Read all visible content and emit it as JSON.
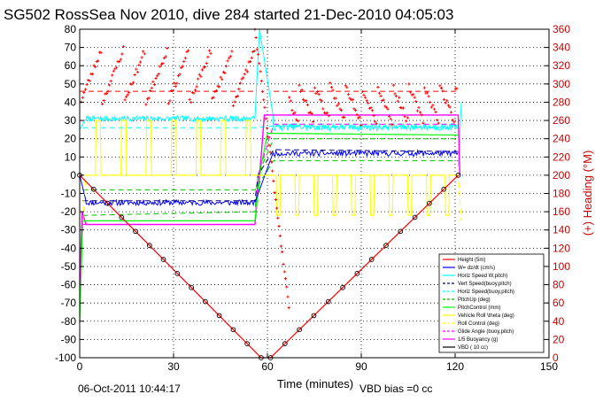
{
  "chart_data": {
    "type": "line",
    "title": "SG502 RossSea Nov 2010, dive 284 started 21-Dec-2010 04:05:03",
    "xlabel": "Time (minutes)",
    "ylabel_right": "(+) Heading (°M)",
    "xlim": [
      0,
      150
    ],
    "ylim": [
      -100,
      80
    ],
    "ylim_right": [
      0,
      360
    ],
    "x_ticks": [
      0,
      30,
      60,
      90,
      120,
      150
    ],
    "y_ticks": [
      -100,
      -90,
      -80,
      -70,
      -60,
      -50,
      -40,
      -30,
      -20,
      -10,
      0,
      10,
      20,
      30,
      40,
      50,
      60,
      70,
      80
    ],
    "y_ticks_right": [
      0,
      20,
      40,
      60,
      80,
      100,
      120,
      140,
      160,
      180,
      200,
      220,
      240,
      260,
      280,
      300,
      320,
      340,
      360
    ],
    "grid": true,
    "legend_position": "bottom-right",
    "series": [
      {
        "name": "Height (5m)",
        "color": "#ff0000",
        "x": [
          0,
          58,
          61,
          121
        ],
        "values": [
          0,
          -100,
          -100,
          0
        ]
      },
      {
        "name": "W= dz/dt (cm/s)",
        "color": "#0000ff",
        "x": [
          0,
          2,
          10,
          55,
          56,
          57,
          62,
          63,
          90,
          121
        ],
        "values": [
          0,
          -14,
          -16,
          -15,
          -15,
          0,
          12,
          13,
          12,
          11
        ]
      },
      {
        "name": "Horiz Speed W,pitch)",
        "color": "#00ffff",
        "x": [
          0,
          2,
          56,
          57,
          62,
          121
        ],
        "values": [
          25,
          32,
          31,
          80,
          29,
          26
        ]
      },
      {
        "name": "Vert Speed(buoy,pitch)",
        "color": "#000080",
        "x": [
          0,
          2,
          56,
          57,
          62,
          121
        ],
        "values": [
          0,
          -14,
          -14,
          0,
          14,
          13
        ]
      },
      {
        "name": "Horiz Speed(buoy,pitch)",
        "color": "#00ffff",
        "x": [
          0,
          2,
          56,
          62,
          121
        ],
        "values": [
          25,
          26,
          26,
          27,
          26
        ]
      },
      {
        "name": "PitchUp (deg)",
        "color": "#00c000",
        "x": [
          0,
          2,
          56,
          57,
          62,
          121
        ],
        "values": [
          0,
          -22,
          -20,
          0,
          20,
          20
        ]
      },
      {
        "name": "PitchControl (mm)",
        "color": "#00ff00",
        "x": [
          0,
          2,
          56,
          57,
          62,
          121
        ],
        "values": [
          -80,
          -25,
          -25,
          0,
          23,
          22
        ]
      },
      {
        "name": "Vehicle Roll \\theta (deg)",
        "color": "#ffff00",
        "x": [
          0,
          2,
          56,
          57,
          62,
          121
        ],
        "values": [
          0,
          0,
          0,
          0,
          0,
          0
        ]
      },
      {
        "name": "Roll Control (deg)",
        "color": "#ffff00",
        "x": [
          0,
          2,
          56,
          57,
          62,
          121
        ],
        "values": [
          0,
          0,
          0,
          0,
          0,
          0
        ]
      },
      {
        "name": "Glide Angle (buoy,pitch)",
        "color": "#ff00ff",
        "x": [
          0,
          2,
          56,
          62,
          121
        ],
        "values": [
          0,
          -28,
          -27,
          28,
          27
        ]
      },
      {
        "name": "1/5 Buoyancy (g)",
        "color": "#ff00ff",
        "x": [
          0,
          2,
          56,
          57,
          62,
          121
        ],
        "values": [
          -60,
          -27,
          -27,
          0,
          33,
          32
        ]
      },
      {
        "name": "VBD ( 10 cc)",
        "color": "#000000",
        "x": [
          0,
          58,
          61,
          121
        ],
        "values": [
          0,
          -100,
          -100,
          0
        ]
      }
    ],
    "heading_series": {
      "name": "(+) Heading (°M)",
      "color": "#ff0000"
    },
    "annotations": [
      "06-Oct-2011 10:44:17",
      "VBD bias =0 cc"
    ]
  },
  "footer": {
    "timestamp": "06-Oct-2011 10:44:17",
    "vbd_bias": "VBD bias =0 cc"
  },
  "colors": {
    "right_axis": "#cc0000",
    "grid": "#000000"
  }
}
